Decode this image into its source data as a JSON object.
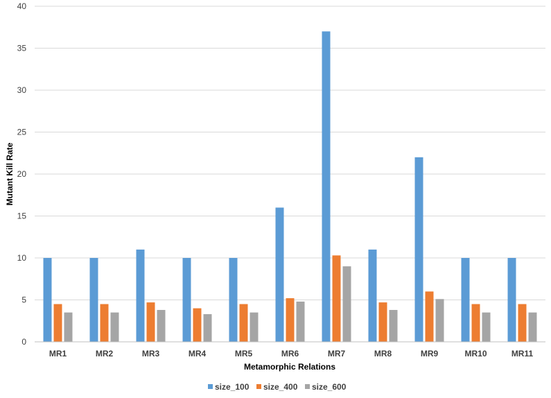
{
  "chart_data": {
    "type": "bar",
    "title": "",
    "xlabel": "Metamorphic Relations",
    "ylabel": "Mutant Kill Rate",
    "ylim": [
      0,
      40
    ],
    "yticks": [
      0,
      5,
      10,
      15,
      20,
      25,
      30,
      35,
      40
    ],
    "grid": true,
    "legend_position": "bottom",
    "categories": [
      "MR1",
      "MR2",
      "MR3",
      "MR4",
      "MR5",
      "MR6",
      "MR7",
      "MR8",
      "MR9",
      "MR10",
      "MR11"
    ],
    "series": [
      {
        "name": "size_100",
        "color": "#5B9BD5",
        "values": [
          10,
          10,
          11,
          10,
          10,
          16,
          37,
          11,
          22,
          10,
          10
        ]
      },
      {
        "name": "size_400",
        "color": "#ED7D31",
        "values": [
          4.5,
          4.5,
          4.7,
          4.0,
          4.5,
          5.2,
          10.3,
          4.7,
          6.0,
          4.5,
          4.5
        ]
      },
      {
        "name": "size_600",
        "color": "#A5A5A5",
        "values": [
          3.5,
          3.5,
          3.8,
          3.3,
          3.5,
          4.8,
          9.0,
          3.8,
          5.1,
          3.5,
          3.5
        ]
      }
    ]
  }
}
